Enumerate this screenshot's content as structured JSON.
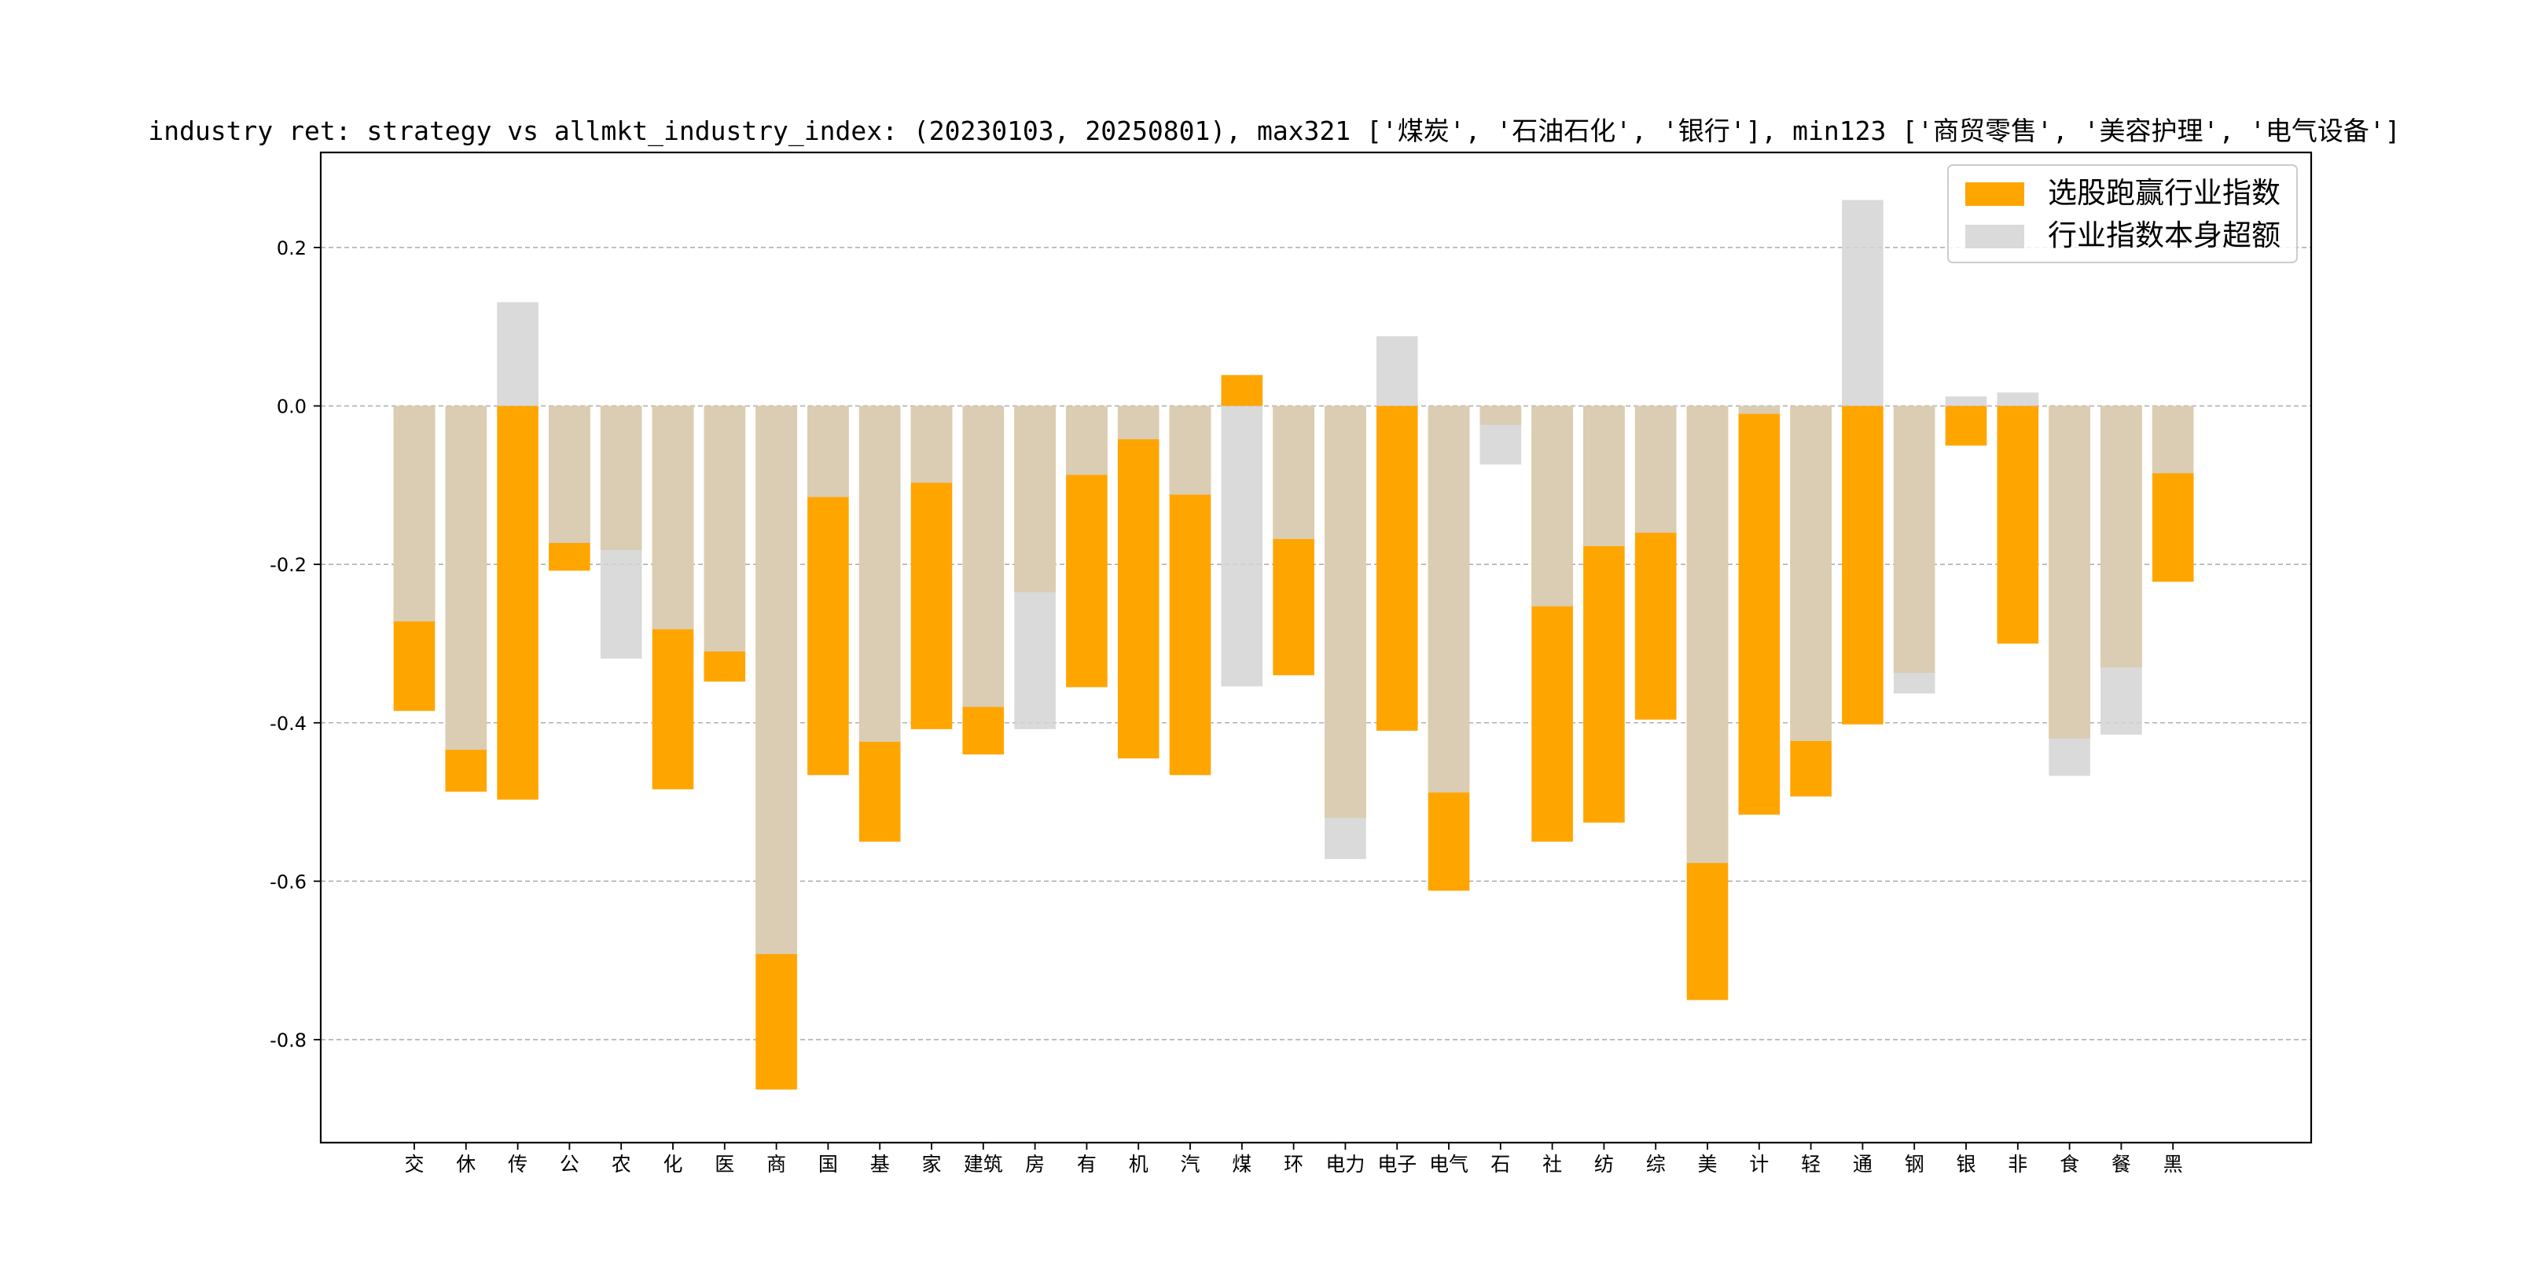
{
  "chart_data": {
    "type": "bar",
    "title": "industry ret: strategy vs allmkt_industry_index: (20230103, 20250801), max321 ['煤炭', '石油石化', '银行'], min123 ['商贸零售', '美容护理', '电气设备']",
    "xlabel": "",
    "ylabel": "",
    "ylim": [
      -0.93,
      0.32
    ],
    "yticks": [
      0.2,
      0.0,
      -0.2,
      -0.4,
      -0.6,
      -0.8
    ],
    "ytick_labels": [
      "0.2",
      "0.0",
      "-0.2",
      "-0.4",
      "-0.6",
      "-0.8"
    ],
    "grid": "y-dashed",
    "legend_position": "top-right",
    "categories": [
      "交",
      "休",
      "传",
      "公",
      "农",
      "化",
      "医",
      "商",
      "国",
      "基",
      "家",
      "建筑",
      "房",
      "有",
      "机",
      "汽",
      "煤",
      "环",
      "电力",
      "电子",
      "电气",
      "石",
      "社",
      "纺",
      "综",
      "美",
      "计",
      "轻",
      "通",
      "钢",
      "银",
      "非",
      "食",
      "餐",
      "黑"
    ],
    "series": [
      {
        "name": "选股跑赢行业指数",
        "color": "#ffa500",
        "values": [
          -0.385,
          -0.487,
          -0.497,
          -0.208,
          -0.182,
          -0.484,
          -0.348,
          -0.863,
          -0.466,
          -0.55,
          -0.408,
          -0.44,
          -0.235,
          -0.355,
          -0.445,
          -0.466,
          0.039,
          -0.34,
          -0.52,
          -0.41,
          -0.612,
          -0.024,
          -0.55,
          -0.526,
          -0.396,
          -0.75,
          -0.516,
          -0.493,
          -0.402,
          -0.337,
          -0.05,
          -0.3,
          -0.42,
          -0.33,
          -0.222
        ]
      },
      {
        "name": "行业指数本身超额",
        "color": "#d3d3d3",
        "values": [
          -0.272,
          -0.434,
          0.131,
          -0.173,
          -0.319,
          -0.282,
          -0.31,
          -0.692,
          -0.115,
          -0.424,
          -0.097,
          -0.38,
          -0.408,
          -0.087,
          -0.042,
          -0.112,
          -0.354,
          -0.168,
          -0.572,
          0.088,
          -0.488,
          -0.074,
          -0.253,
          -0.177,
          -0.16,
          -0.577,
          -0.01,
          -0.423,
          0.26,
          -0.363,
          0.012,
          0.017,
          -0.467,
          -0.415,
          -0.085
        ]
      }
    ]
  }
}
